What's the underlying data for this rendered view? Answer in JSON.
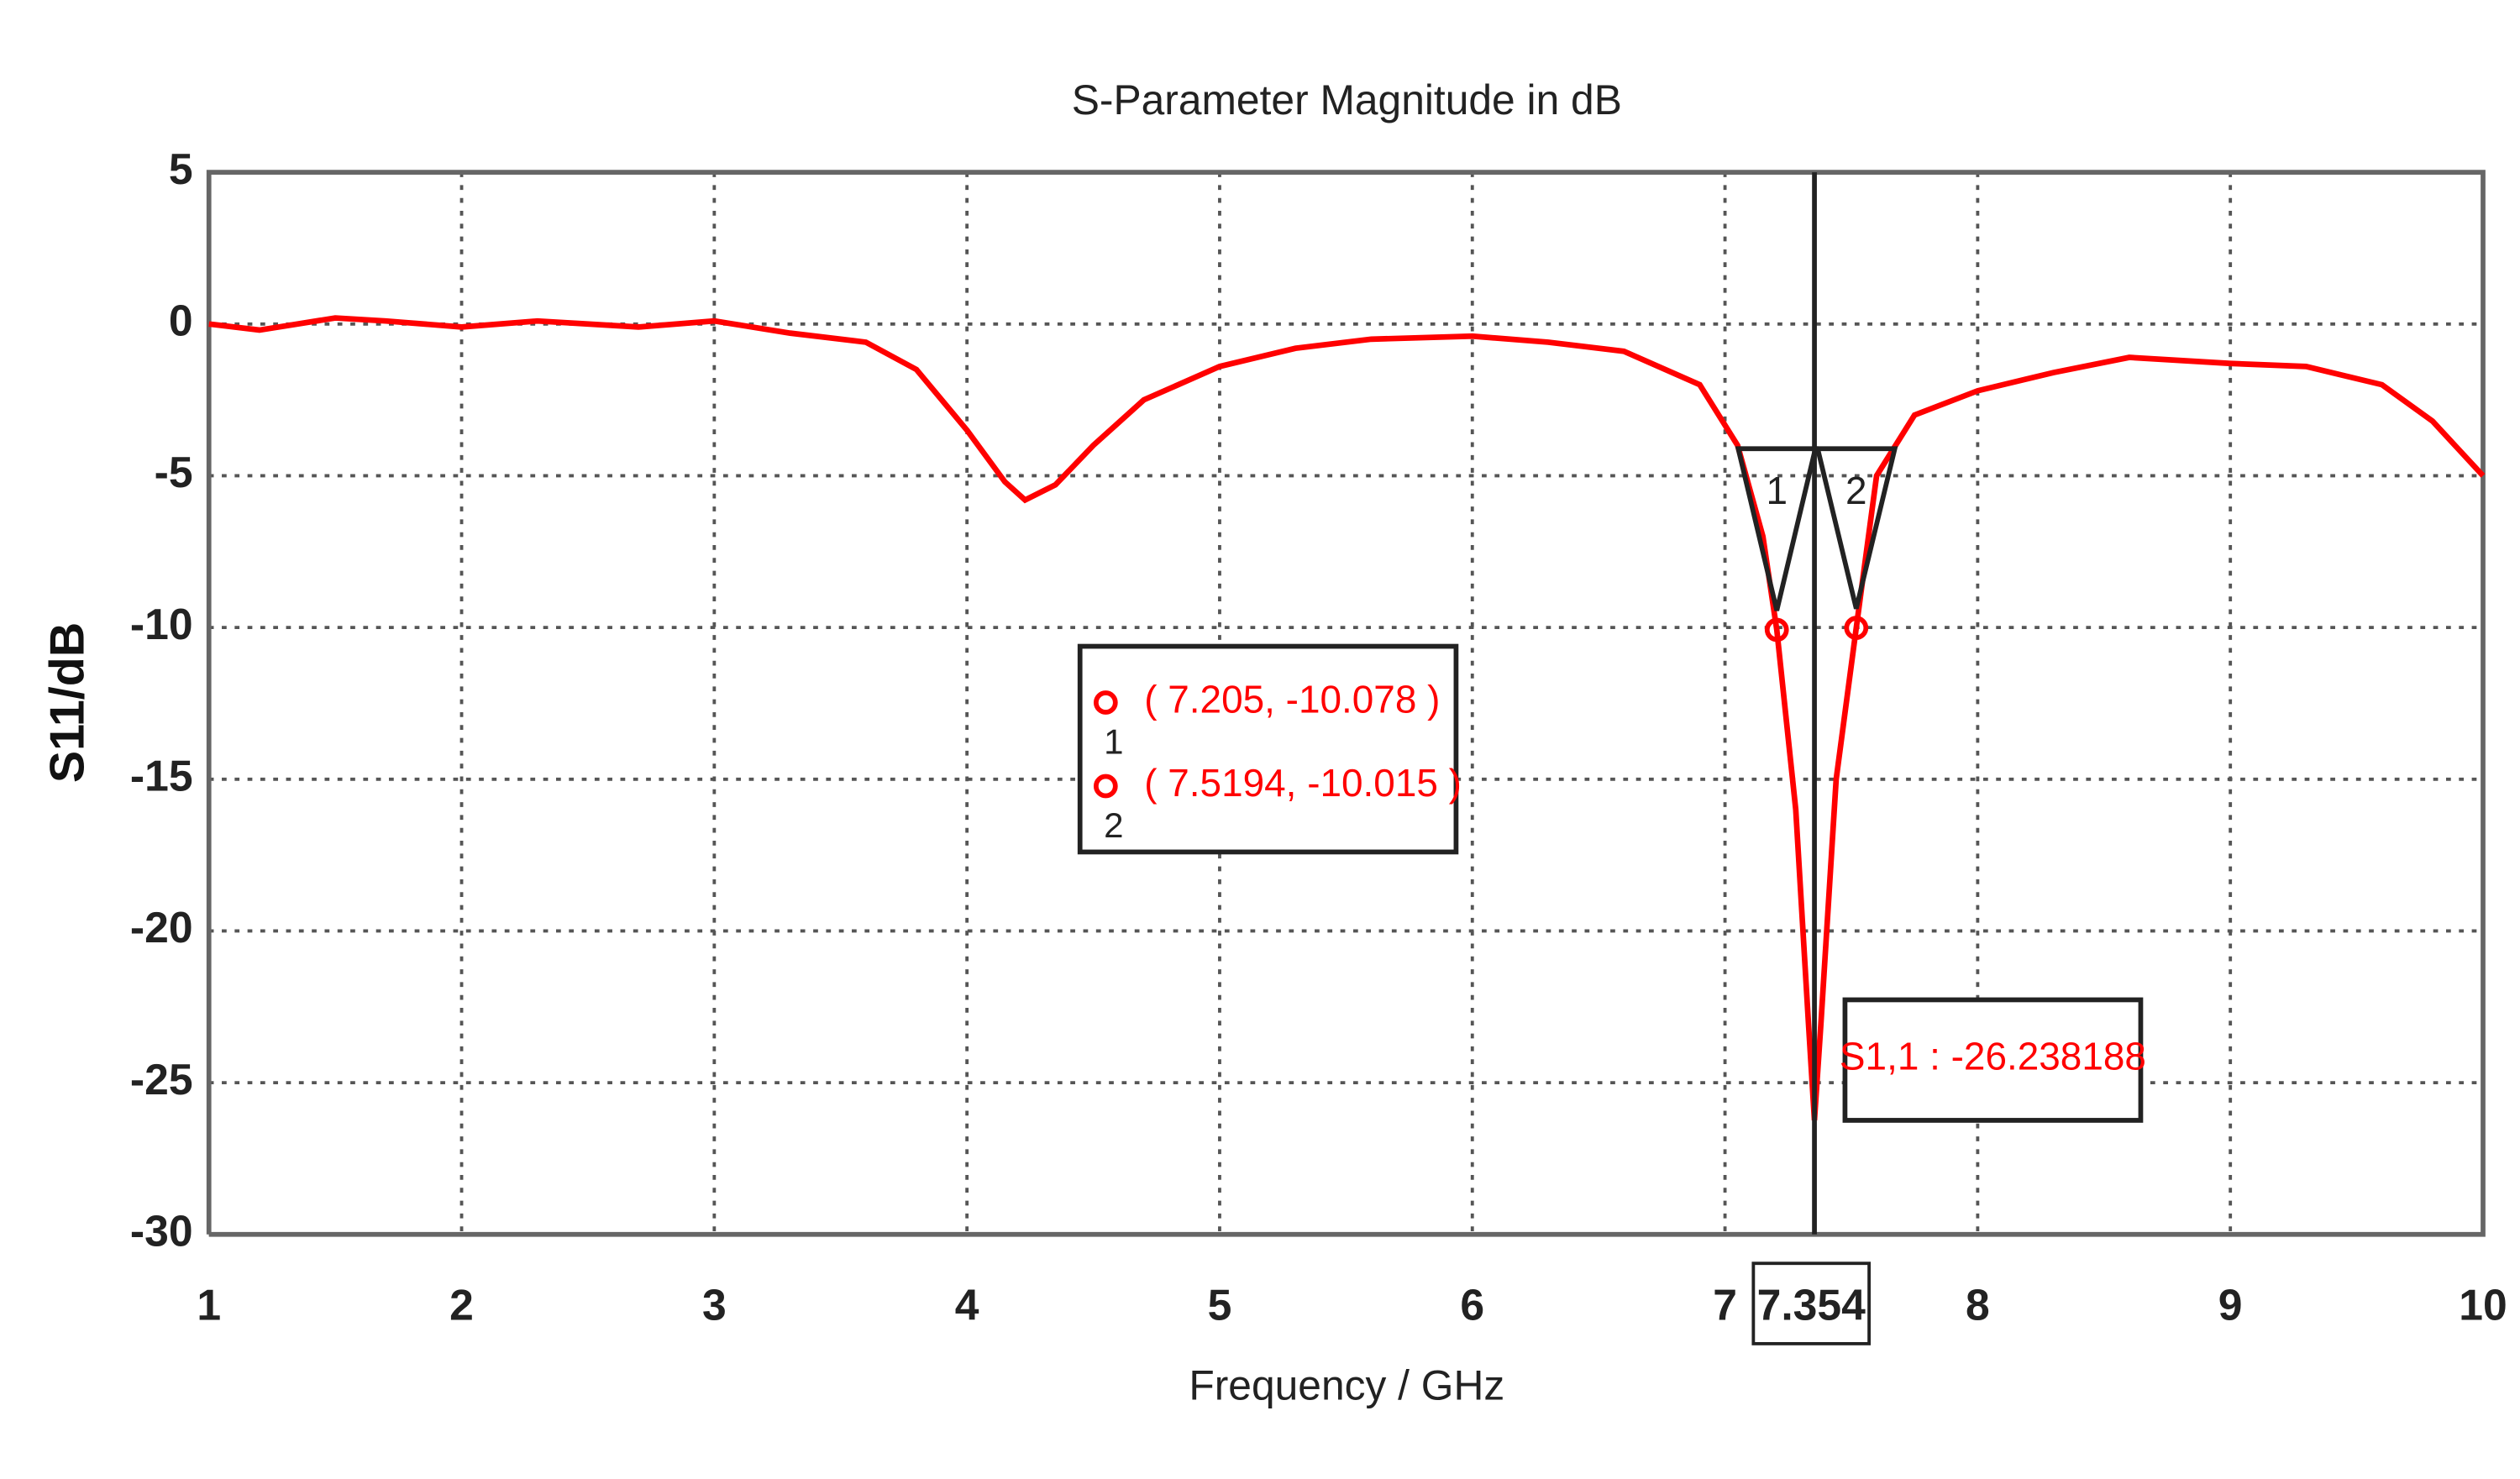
{
  "chart_data": {
    "type": "line",
    "title": "S-Parameter Magnitude in dB",
    "x_label": "Frequency / GHz",
    "y_label": "S11/dB",
    "x": [
      1.0,
      1.2,
      1.5,
      1.7,
      2.0,
      2.3,
      2.7,
      3.0,
      3.3,
      3.6,
      3.8,
      4.0,
      4.15,
      4.23,
      4.35,
      4.5,
      4.7,
      5.0,
      5.3,
      5.6,
      6.0,
      6.3,
      6.6,
      6.9,
      7.05,
      7.15,
      7.205,
      7.28,
      7.33,
      7.354,
      7.38,
      7.44,
      7.5194,
      7.6,
      7.75,
      8.0,
      8.3,
      8.6,
      9.0,
      9.3,
      9.6,
      9.8,
      10.0
    ],
    "series": [
      {
        "color": "#ff0000",
        "values": [
          0,
          -0.2,
          0.2,
          0.1,
          -0.1,
          0.1,
          -0.1,
          0.1,
          -0.3,
          -0.6,
          -1.5,
          -3.5,
          -5.2,
          -5.8,
          -5.3,
          -4,
          -2.5,
          -1.4,
          -0.8,
          -0.5,
          -0.4,
          -0.6,
          -0.9,
          -2,
          -4,
          -7,
          -10.078,
          -16,
          -23,
          -26.238188,
          -23,
          -15,
          -10.015,
          -5,
          -3,
          -2.2,
          -1.6,
          -1.1,
          -1.3,
          -1.4,
          -2,
          -3.2,
          -5
        ]
      }
    ],
    "xlim": [
      1,
      10
    ],
    "ylim": [
      -30,
      5
    ],
    "xticks": [
      1,
      2,
      3,
      4,
      5,
      6,
      7,
      8,
      9,
      10
    ],
    "yticks": [
      5,
      0,
      -5,
      -10,
      -15,
      -20,
      -25,
      -30
    ],
    "grid": true,
    "markers": [
      {
        "id": "1",
        "x": 7.205,
        "y": -10.078,
        "label": "( 7.205, -10.078 )"
      },
      {
        "id": "2",
        "x": 7.5194,
        "y": -10.015,
        "label": "( 7.5194, -10.015 )"
      }
    ],
    "cursor": {
      "x": 7.354,
      "y": -26.238188,
      "readout": "S1,1 : -26.238188"
    }
  }
}
